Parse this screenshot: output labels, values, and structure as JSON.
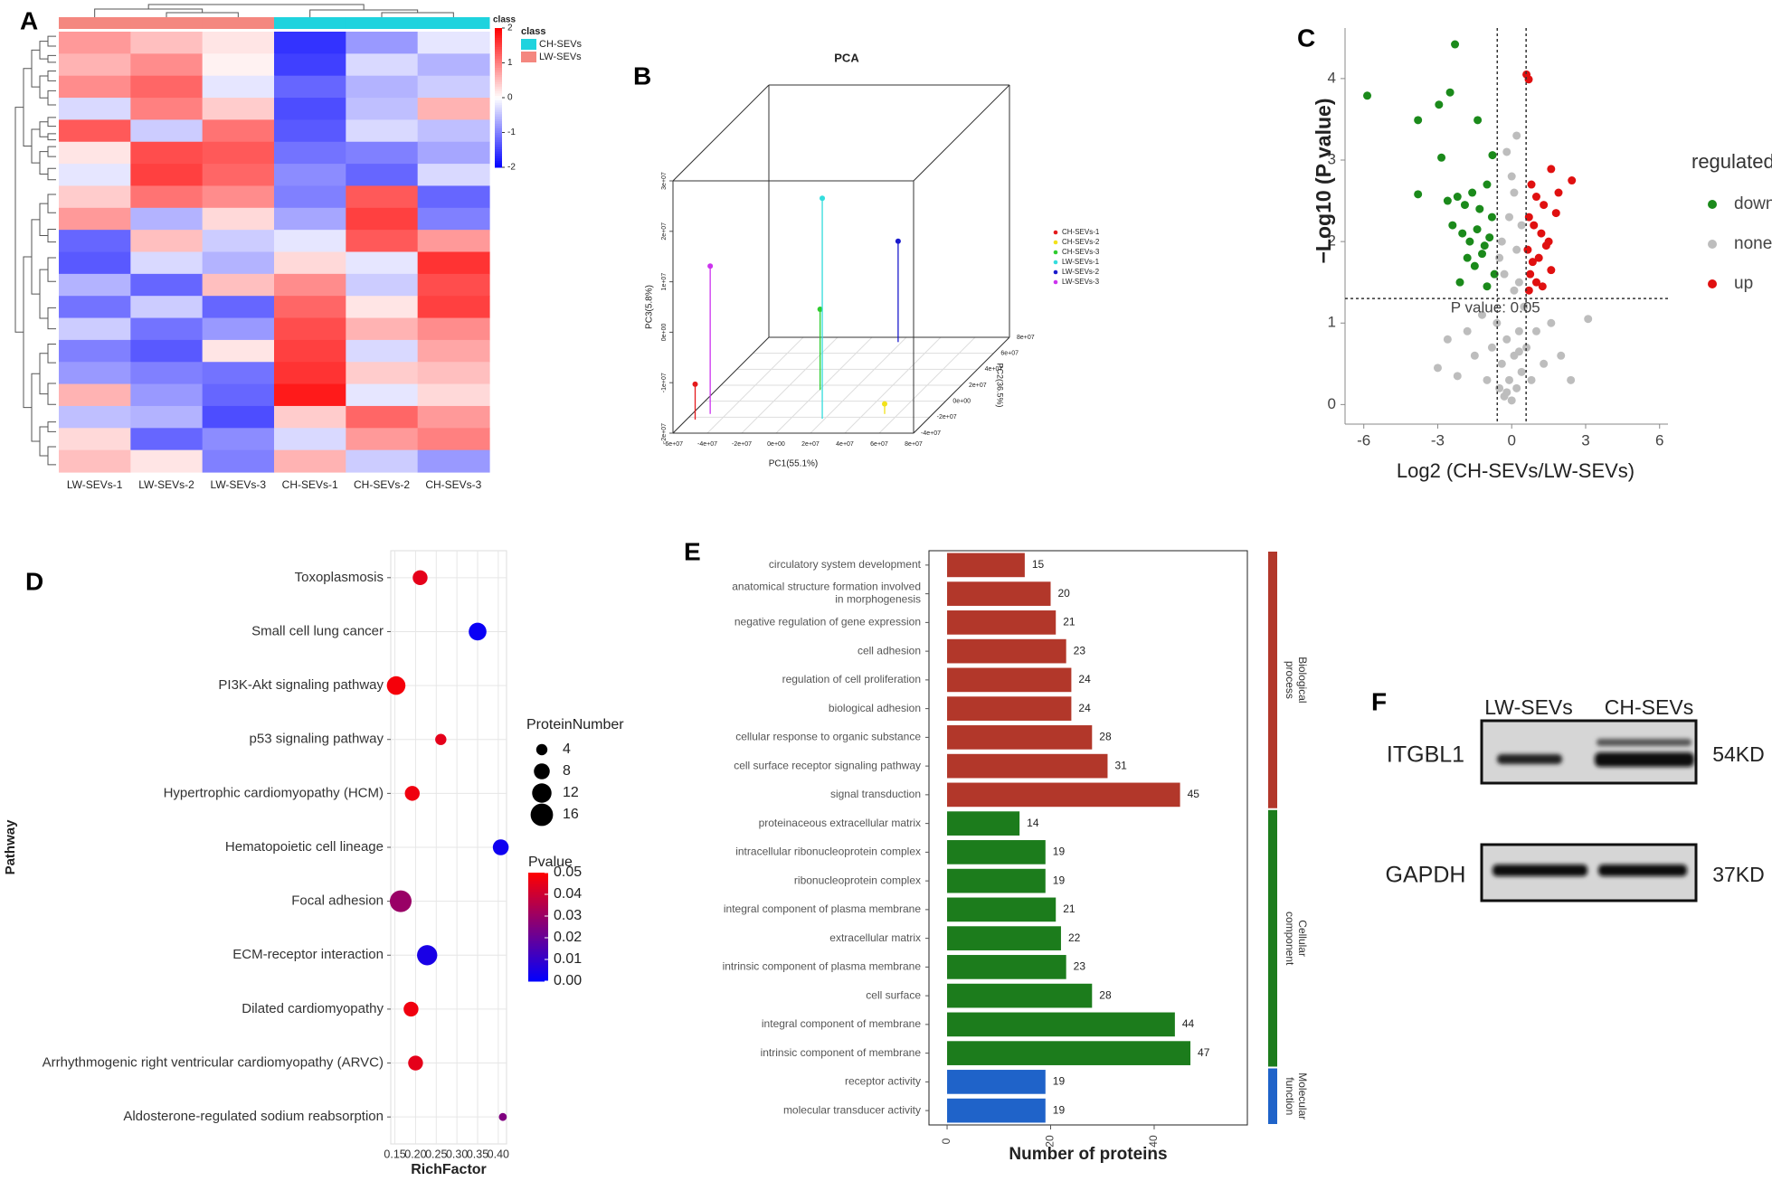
{
  "chart_data": [
    {
      "type": "heatmap",
      "label": "A",
      "columns": [
        "LW-SEVs-1",
        "LW-SEVs-2",
        "LW-SEVs-3",
        "CH-SEVs-1",
        "CH-SEVs-2",
        "CH-SEVs-3"
      ],
      "column_class": [
        "LW-SEVs",
        "LW-SEVs",
        "LW-SEVs",
        "CH-SEVs",
        "CH-SEVs",
        "CH-SEVs"
      ],
      "class_bar_label": "class",
      "legend_title": "class",
      "classes": [
        {
          "name": "CH-SEVs",
          "color": "#1fd3de"
        },
        {
          "name": "LW-SEVs",
          "color": "#f4877f"
        }
      ],
      "values": [
        [
          0.8,
          0.5,
          0.2,
          -1.6,
          -0.8,
          -0.2
        ],
        [
          0.6,
          0.9,
          0.1,
          -1.5,
          -0.3,
          -0.6
        ],
        [
          0.9,
          1.2,
          -0.2,
          -1.2,
          -0.6,
          -0.4
        ],
        [
          -0.3,
          1.0,
          0.4,
          -1.4,
          -0.5,
          0.6
        ],
        [
          1.3,
          -0.4,
          1.1,
          -1.3,
          -0.3,
          -0.5
        ],
        [
          0.2,
          1.4,
          1.3,
          -1.1,
          -1.0,
          -0.7
        ],
        [
          -0.2,
          1.5,
          1.2,
          -0.9,
          -1.2,
          -0.3
        ],
        [
          0.4,
          1.1,
          0.9,
          -1.0,
          1.3,
          -1.2
        ],
        [
          0.8,
          -0.6,
          0.3,
          -0.7,
          1.5,
          -1.0
        ],
        [
          -1.2,
          0.5,
          -0.4,
          -0.2,
          1.3,
          0.8
        ],
        [
          -1.3,
          -0.3,
          -0.6,
          0.3,
          -0.2,
          1.6
        ],
        [
          -0.6,
          -1.2,
          0.5,
          0.9,
          -0.4,
          1.4
        ],
        [
          -1.1,
          -0.4,
          -1.2,
          1.2,
          0.2,
          1.5
        ],
        [
          -0.4,
          -1.1,
          -0.8,
          1.4,
          0.6,
          0.9
        ],
        [
          -1.0,
          -1.3,
          0.2,
          1.5,
          -0.3,
          0.7
        ],
        [
          -0.8,
          -1.0,
          -1.1,
          1.6,
          0.4,
          0.5
        ],
        [
          0.6,
          -0.8,
          -1.2,
          1.8,
          -0.2,
          0.3
        ],
        [
          -0.5,
          -0.6,
          -1.4,
          0.4,
          1.2,
          0.8
        ],
        [
          0.3,
          -1.2,
          -0.9,
          -0.3,
          0.8,
          1.0
        ],
        [
          0.5,
          0.2,
          -1.0,
          0.6,
          -0.4,
          -0.8
        ]
      ],
      "clim": [
        -2,
        2
      ],
      "colorbar_ticks": [
        2,
        1,
        0,
        -1,
        -2
      ],
      "colors": [
        "#0000ff",
        "#ffffff",
        "#ff0000"
      ]
    },
    {
      "type": "scatter3d",
      "label": "B",
      "title": "PCA",
      "xlabel": "PC1(55.1%)",
      "ylabel": "PC2(36.5%)",
      "zlabel": "PC3(5.8%)",
      "xlim": [
        -60000000,
        80000000
      ],
      "ylim": [
        -40000000,
        80000000
      ],
      "zlim": [
        -20000000,
        30000000
      ],
      "xticks": [
        {
          "value": -60000000,
          "label": "-6e+07"
        },
        {
          "value": -40000000,
          "label": "-4e+07"
        },
        {
          "value": -20000000,
          "label": "-2e+07"
        },
        {
          "value": 0,
          "label": "0e+00"
        },
        {
          "value": 20000000,
          "label": "2e+07"
        },
        {
          "value": 40000000,
          "label": "4e+07"
        },
        {
          "value": 60000000,
          "label": "6e+07"
        },
        {
          "value": 80000000,
          "label": "8e+07"
        }
      ],
      "yticks": [
        {
          "value": -40000000,
          "label": "-4e+07"
        },
        {
          "value": -20000000,
          "label": "-2e+07"
        },
        {
          "value": 0,
          "label": "0e+00"
        },
        {
          "value": 20000000,
          "label": "2e+07"
        },
        {
          "value": 40000000,
          "label": "4e+07"
        },
        {
          "value": 60000000,
          "label": "6e+07"
        },
        {
          "value": 80000000,
          "label": "8e+07"
        }
      ],
      "zticks": [
        {
          "value": -20000000,
          "label": "-2e+07"
        },
        {
          "value": -10000000,
          "label": "-1e+07"
        },
        {
          "value": 0,
          "label": "0e+00"
        },
        {
          "value": 10000000,
          "label": "1e+07"
        },
        {
          "value": 20000000,
          "label": "2e+07"
        },
        {
          "value": 30000000,
          "label": "3e+07"
        }
      ],
      "series": [
        {
          "name": "CH-SEVs-1",
          "color": "#e41a1c",
          "x": [
            -55000000
          ],
          "y": [
            -23000000
          ],
          "z": [
            -13000000
          ]
        },
        {
          "name": "CH-SEVs-2",
          "color": "#f2e21a",
          "x": [
            52000000
          ],
          "y": [
            -16000000
          ],
          "z": [
            -18000000
          ]
        },
        {
          "name": "CH-SEVs-3",
          "color": "#2ecc2e",
          "x": [
            500000
          ],
          "y": [
            14000000
          ],
          "z": [
            -4000000
          ]
        },
        {
          "name": "LW-SEVs-1",
          "color": "#33dddd",
          "x": [
            18500000
          ],
          "y": [
            -22000000
          ],
          "z": [
            23700000
          ]
        },
        {
          "name": "LW-SEVs-2",
          "color": "#1a1acc",
          "x": [
            18000000
          ],
          "y": [
            74000000
          ],
          "z": [
            0
          ]
        },
        {
          "name": "LW-SEVs-3",
          "color": "#cc33ee",
          "x": [
            -49500000
          ],
          "y": [
            -16000000
          ],
          "z": [
            9300000
          ]
        }
      ]
    },
    {
      "type": "scatter",
      "label": "C",
      "xlabel": "Log2 (CH-SEVs/LW-SEVs)",
      "ylabel": "−Log10 (P value)",
      "xlim": [
        -6.76,
        6.34
      ],
      "ylim": [
        -0.24,
        4.62
      ],
      "xticks": [
        -6,
        -3,
        0,
        3,
        6
      ],
      "yticks": [
        0,
        1,
        2,
        3,
        4
      ],
      "hline": 1.301,
      "vlines": [
        -0.585,
        0.585
      ],
      "annotation": "P value: 0.05",
      "legend_title": "regulated",
      "series": [
        {
          "name": "down",
          "color": "#1b8a1b",
          "x": [
            -5.86,
            -2.3,
            -3.8,
            -2.95,
            -2.5,
            -1.38,
            -2.85,
            -3.8,
            -0.78,
            -2.6,
            -2.2,
            -1.9,
            -1.6,
            -1.3,
            -1.0,
            -0.8,
            -2.4,
            -2.0,
            -1.7,
            -1.4,
            -1.1,
            -0.9,
            -1.8,
            -1.5,
            -1.2,
            -0.7,
            -2.1,
            -1.0
          ],
          "y": [
            3.79,
            4.42,
            3.49,
            3.68,
            3.83,
            3.49,
            3.03,
            2.58,
            3.06,
            2.5,
            2.55,
            2.45,
            2.6,
            2.4,
            2.7,
            2.3,
            2.2,
            2.1,
            2.0,
            2.15,
            1.95,
            2.05,
            1.8,
            1.7,
            1.85,
            1.6,
            1.5,
            1.45
          ]
        },
        {
          "name": "none",
          "color": "#bdbdbd",
          "x": [
            -3.0,
            -2.6,
            -2.2,
            -1.8,
            -1.5,
            -1.2,
            -1.0,
            -0.8,
            -0.6,
            -0.5,
            -0.4,
            -0.3,
            -0.2,
            -0.1,
            0,
            0.1,
            0.2,
            0.3,
            0.4,
            0.5,
            0.6,
            0.8,
            1.0,
            1.3,
            1.6,
            2.0,
            2.4,
            3.1,
            -0.3,
            0.2,
            -0.1,
            0.1,
            -0.4,
            0.3,
            0.0,
            -0.2,
            0.2,
            -0.5,
            0.4,
            0.1,
            -0.2,
            0.3
          ],
          "y": [
            0.45,
            0.8,
            0.35,
            0.9,
            0.6,
            1.1,
            0.3,
            0.7,
            1.0,
            0.2,
            0.5,
            0.1,
            0.8,
            0.3,
            0.05,
            0.6,
            0.2,
            0.9,
            0.4,
            1.2,
            0.7,
            0.3,
            0.9,
            0.5,
            1.0,
            0.6,
            0.3,
            1.05,
            1.6,
            1.9,
            2.3,
            2.6,
            2.0,
            1.5,
            2.8,
            3.1,
            3.3,
            1.8,
            2.2,
            1.4,
            0.15,
            0.65
          ]
        },
        {
          "name": "up",
          "color": "#e01010",
          "x": [
            0.6,
            0.69,
            2.44,
            1.6,
            0.8,
            1.0,
            1.3,
            1.9,
            0.7,
            0.9,
            1.2,
            1.5,
            1.8,
            0.65,
            1.1,
            1.4,
            0.75,
            1.0,
            1.6,
            0.85,
            1.25,
            0.7
          ],
          "y": [
            4.05,
            3.99,
            2.75,
            2.89,
            2.7,
            2.55,
            2.45,
            2.6,
            2.3,
            2.2,
            2.1,
            2.0,
            2.35,
            1.9,
            1.8,
            1.95,
            1.6,
            1.5,
            1.65,
            1.75,
            1.45,
            1.4
          ]
        }
      ]
    },
    {
      "type": "bubble",
      "label": "D",
      "xlabel": "RichFactor",
      "ylabel": "Pathway",
      "categories": [
        "Toxoplasmosis",
        "Small cell lung cancer",
        "PI3K-Akt signaling pathway",
        "p53 signaling pathway",
        "Hypertrophic cardiomyopathy (HCM)",
        "Hematopoietic cell lineage",
        "Focal adhesion",
        "ECM-receptor interaction",
        "Dilated cardiomyopathy",
        "Arrhythmogenic right ventricular cardiomyopathy (ARVC)",
        "Aldosterone-regulated sodium reabsorption"
      ],
      "x": [
        0.211,
        0.35,
        0.153,
        0.261,
        0.192,
        0.406,
        0.164,
        0.228,
        0.189,
        0.2,
        0.411
      ],
      "sizes": [
        7,
        10,
        11,
        4,
        7,
        8,
        15,
        13,
        7,
        7,
        2
      ],
      "pvalues": [
        0.045,
        0.002,
        0.048,
        0.045,
        0.047,
        0.003,
        0.03,
        0.005,
        0.047,
        0.045,
        0.025
      ],
      "xlim": [
        0.14,
        0.42
      ],
      "xticks": [
        0.15,
        {
          "value": 0.2,
          "label": "0.20"
        },
        0.25,
        {
          "value": 0.3,
          "label": "0.30"
        },
        0.35,
        {
          "value": 0.4,
          "label": "0.40"
        }
      ],
      "size_legend_title": "ProteinNumber",
      "size_legend": [
        4,
        8,
        12,
        16
      ],
      "color_legend_title": "Pvalue",
      "pvalue_lim": [
        0,
        0.05
      ],
      "pvalue_ticks": [
        0.05,
        0.04,
        0.03,
        0.02,
        0.01,
        {
          "value": 0,
          "label": "0.00"
        }
      ],
      "color_low": "#0000ff",
      "color_high": "#ff0000"
    },
    {
      "type": "bar",
      "label": "E",
      "xlabel": "Number of proteins",
      "xlim": [
        -3.5,
        58
      ],
      "xticks": [
        0,
        20,
        40
      ],
      "series": [
        {
          "name": "Biological\nprocess",
          "color": "#b2372a",
          "categories": [
            "circulatory system development",
            "anatomical structure formation involved\nin morphogenesis",
            "negative regulation of gene expression",
            "cell adhesion",
            "regulation of cell proliferation",
            "biological adhesion",
            "cellular response to organic substance",
            "cell surface receptor signaling pathway",
            "signal transduction"
          ],
          "values": [
            15,
            20,
            21,
            23,
            24,
            24,
            28,
            31,
            45
          ]
        },
        {
          "name": "Cellular\ncomponent",
          "color": "#1c7c1c",
          "categories": [
            "proteinaceous extracellular matrix",
            "intracellular ribonucleoprotein complex",
            "ribonucleoprotein complex",
            "integral component of plasma membrane",
            "extracellular matrix",
            "intrinsic component of plasma membrane",
            "cell surface",
            "integral component of membrane",
            "intrinsic component of membrane"
          ],
          "values": [
            14,
            19,
            19,
            21,
            22,
            23,
            28,
            44,
            47
          ]
        },
        {
          "name": "Molecular\nfunction",
          "color": "#1f63c9",
          "categories": [
            "receptor activity",
            "molecular transducer activity"
          ],
          "values": [
            19,
            19
          ]
        }
      ]
    }
  ],
  "blot": {
    "label": "F",
    "lanes": [
      "LW-SEVs",
      "CH-SEVs"
    ],
    "rows": [
      {
        "protein": "ITGBL1",
        "size": "54KD"
      },
      {
        "protein": "GAPDH",
        "size": "37KD"
      }
    ]
  }
}
